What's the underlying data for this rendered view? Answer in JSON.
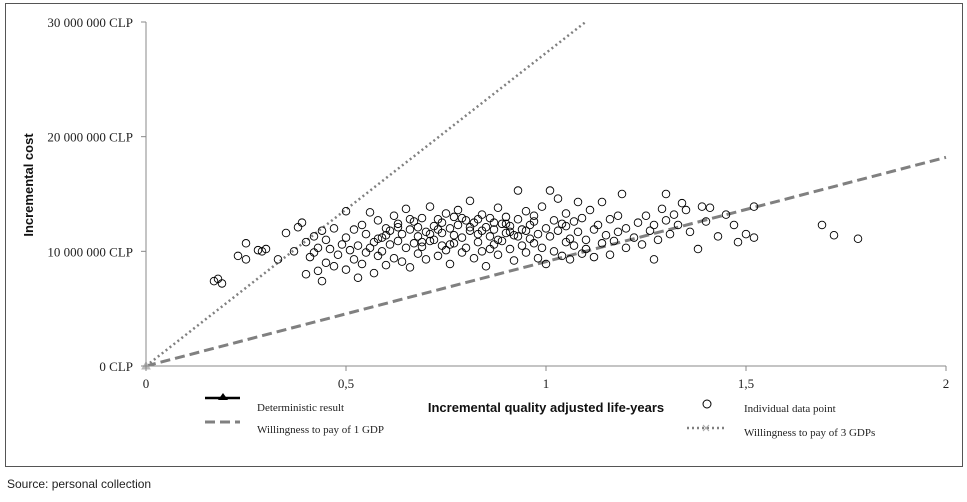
{
  "chart_data": {
    "type": "scatter",
    "title": "",
    "xlabel": "Incremental quality adjusted life-years",
    "ylabel": "Incremental cost",
    "xlim": [
      0,
      2
    ],
    "ylim": [
      0,
      30000000
    ],
    "x_ticks": [
      "0",
      "0,5",
      "1",
      "1,5",
      "2"
    ],
    "y_ticks": [
      "0 CLP",
      "10 000 000 CLP",
      "20 000 000 CLP",
      "30 000 000 CLP"
    ],
    "grid": false,
    "legend_position": "bottom",
    "series": [
      {
        "name": "Deterministic result",
        "style": "solid",
        "color": "#000000",
        "marker": "triangle",
        "points": [
          [
            0,
            0
          ]
        ]
      },
      {
        "name": "Willingness to pay of 1 GDP",
        "style": "dashed",
        "color": "#808080",
        "slope": 9100000
      },
      {
        "name": "Individual data point",
        "style": "points",
        "color": "#000000",
        "marker": "open-circle",
        "points": [
          [
            0.17,
            7400000
          ],
          [
            0.18,
            7600000
          ],
          [
            0.19,
            7200000
          ],
          [
            0.23,
            9600000
          ],
          [
            0.25,
            9300000
          ],
          [
            0.25,
            10700000
          ],
          [
            0.28,
            10100000
          ],
          [
            0.29,
            10000000
          ],
          [
            0.3,
            10200000
          ],
          [
            0.33,
            9300000
          ],
          [
            0.35,
            11600000
          ],
          [
            0.37,
            10000000
          ],
          [
            0.38,
            12100000
          ],
          [
            0.39,
            12500000
          ],
          [
            0.4,
            8000000
          ],
          [
            0.4,
            10800000
          ],
          [
            0.41,
            9500000
          ],
          [
            0.42,
            11300000
          ],
          [
            0.42,
            9900000
          ],
          [
            0.43,
            8300000
          ],
          [
            0.43,
            10300000
          ],
          [
            0.44,
            7400000
          ],
          [
            0.44,
            11800000
          ],
          [
            0.45,
            9000000
          ],
          [
            0.45,
            11000000
          ],
          [
            0.46,
            10200000
          ],
          [
            0.47,
            12000000
          ],
          [
            0.47,
            8700000
          ],
          [
            0.48,
            9700000
          ],
          [
            0.49,
            10600000
          ],
          [
            0.5,
            11200000
          ],
          [
            0.5,
            8400000
          ],
          [
            0.5,
            13500000
          ],
          [
            0.51,
            10100000
          ],
          [
            0.52,
            9300000
          ],
          [
            0.52,
            11900000
          ],
          [
            0.53,
            7700000
          ],
          [
            0.53,
            10500000
          ],
          [
            0.54,
            12300000
          ],
          [
            0.54,
            8900000
          ],
          [
            0.55,
            9900000
          ],
          [
            0.55,
            11500000
          ],
          [
            0.56,
            10300000
          ],
          [
            0.56,
            13400000
          ],
          [
            0.57,
            8100000
          ],
          [
            0.57,
            10800000
          ],
          [
            0.58,
            12700000
          ],
          [
            0.58,
            9600000
          ],
          [
            0.59,
            11200000
          ],
          [
            0.59,
            10000000
          ],
          [
            0.6,
            12000000
          ],
          [
            0.6,
            8800000
          ],
          [
            0.61,
            10600000
          ],
          [
            0.61,
            11800000
          ],
          [
            0.62,
            9400000
          ],
          [
            0.62,
            13100000
          ],
          [
            0.63,
            10900000
          ],
          [
            0.63,
            12400000
          ],
          [
            0.64,
            9100000
          ],
          [
            0.64,
            11500000
          ],
          [
            0.65,
            10300000
          ],
          [
            0.65,
            13700000
          ],
          [
            0.66,
            11900000
          ],
          [
            0.66,
            8600000
          ],
          [
            0.67,
            10700000
          ],
          [
            0.67,
            12600000
          ],
          [
            0.68,
            9800000
          ],
          [
            0.68,
            11300000
          ],
          [
            0.69,
            12900000
          ],
          [
            0.69,
            10400000
          ],
          [
            0.7,
            11700000
          ],
          [
            0.7,
            9300000
          ],
          [
            0.71,
            13900000
          ],
          [
            0.71,
            10900000
          ],
          [
            0.72,
            12200000
          ],
          [
            0.72,
            11000000
          ],
          [
            0.73,
            9600000
          ],
          [
            0.73,
            12800000
          ],
          [
            0.74,
            10500000
          ],
          [
            0.74,
            11600000
          ],
          [
            0.75,
            13300000
          ],
          [
            0.75,
            10100000
          ],
          [
            0.76,
            12000000
          ],
          [
            0.76,
            8900000
          ],
          [
            0.77,
            11400000
          ],
          [
            0.77,
            10700000
          ],
          [
            0.78,
            13600000
          ],
          [
            0.78,
            12300000
          ],
          [
            0.79,
            9900000
          ],
          [
            0.79,
            11200000
          ],
          [
            0.8,
            12700000
          ],
          [
            0.8,
            10300000
          ],
          [
            0.81,
            14400000
          ],
          [
            0.81,
            11800000
          ],
          [
            0.82,
            9400000
          ],
          [
            0.82,
            12500000
          ],
          [
            0.83,
            10800000
          ],
          [
            0.83,
            11500000
          ],
          [
            0.84,
            13200000
          ],
          [
            0.84,
            10000000
          ],
          [
            0.85,
            12100000
          ],
          [
            0.85,
            8700000
          ],
          [
            0.86,
            11300000
          ],
          [
            0.86,
            12900000
          ],
          [
            0.87,
            10600000
          ],
          [
            0.87,
            11900000
          ],
          [
            0.88,
            13800000
          ],
          [
            0.88,
            9700000
          ],
          [
            0.89,
            12400000
          ],
          [
            0.89,
            10900000
          ],
          [
            0.9,
            11600000
          ],
          [
            0.9,
            13000000
          ],
          [
            0.91,
            10200000
          ],
          [
            0.91,
            12200000
          ],
          [
            0.92,
            9200000
          ],
          [
            0.92,
            11400000
          ],
          [
            0.93,
            15300000
          ],
          [
            0.93,
            12800000
          ],
          [
            0.94,
            10500000
          ],
          [
            0.94,
            11900000
          ],
          [
            0.95,
            13500000
          ],
          [
            0.95,
            9900000
          ],
          [
            0.96,
            12300000
          ],
          [
            0.96,
            11100000
          ],
          [
            0.97,
            10700000
          ],
          [
            0.97,
            12600000
          ],
          [
            0.98,
            9400000
          ],
          [
            0.98,
            11500000
          ],
          [
            0.99,
            13900000
          ],
          [
            0.99,
            10300000
          ],
          [
            1.0,
            12000000
          ],
          [
            1.0,
            8900000
          ],
          [
            1.01,
            15300000
          ],
          [
            1.01,
            11300000
          ],
          [
            1.02,
            12700000
          ],
          [
            1.02,
            10000000
          ],
          [
            1.03,
            14600000
          ],
          [
            1.03,
            11800000
          ],
          [
            1.04,
            9600000
          ],
          [
            1.04,
            12400000
          ],
          [
            1.05,
            10800000
          ],
          [
            1.05,
            13300000
          ],
          [
            1.06,
            11100000
          ],
          [
            1.06,
            9300000
          ],
          [
            1.07,
            12600000
          ],
          [
            1.07,
            10500000
          ],
          [
            1.08,
            14300000
          ],
          [
            1.08,
            11700000
          ],
          [
            1.09,
            9800000
          ],
          [
            1.09,
            12900000
          ],
          [
            1.1,
            11000000
          ],
          [
            1.1,
            10200000
          ],
          [
            1.11,
            13600000
          ],
          [
            1.12,
            11900000
          ],
          [
            1.12,
            9500000
          ],
          [
            1.13,
            12300000
          ],
          [
            1.14,
            10700000
          ],
          [
            1.14,
            14300000
          ],
          [
            1.15,
            11400000
          ],
          [
            1.16,
            9700000
          ],
          [
            1.16,
            12800000
          ],
          [
            1.17,
            10900000
          ],
          [
            1.18,
            11700000
          ],
          [
            1.18,
            13100000
          ],
          [
            1.19,
            15000000
          ],
          [
            1.2,
            10300000
          ],
          [
            1.2,
            12000000
          ],
          [
            1.22,
            11200000
          ],
          [
            1.23,
            12500000
          ],
          [
            1.24,
            10600000
          ],
          [
            1.25,
            13100000
          ],
          [
            1.26,
            11800000
          ],
          [
            1.27,
            9300000
          ],
          [
            1.27,
            12300000
          ],
          [
            1.28,
            11000000
          ],
          [
            1.29,
            13700000
          ],
          [
            1.3,
            15000000
          ],
          [
            1.3,
            12700000
          ],
          [
            1.31,
            11500000
          ],
          [
            1.32,
            13200000
          ],
          [
            1.33,
            12300000
          ],
          [
            1.34,
            14200000
          ],
          [
            1.35,
            13600000
          ],
          [
            1.36,
            11700000
          ],
          [
            1.38,
            10200000
          ],
          [
            1.39,
            13900000
          ],
          [
            1.4,
            12600000
          ],
          [
            1.41,
            13800000
          ],
          [
            1.43,
            11300000
          ],
          [
            1.45,
            13200000
          ],
          [
            1.47,
            12300000
          ],
          [
            1.48,
            10800000
          ],
          [
            1.5,
            11500000
          ],
          [
            1.52,
            13900000
          ],
          [
            1.52,
            11200000
          ],
          [
            1.69,
            12300000
          ],
          [
            1.72,
            11400000
          ],
          [
            1.78,
            11100000
          ],
          [
            0.66,
            12800000
          ],
          [
            0.71,
            11500000
          ],
          [
            0.76,
            10600000
          ],
          [
            0.79,
            12900000
          ],
          [
            0.84,
            11800000
          ],
          [
            0.86,
            10200000
          ],
          [
            0.9,
            12400000
          ],
          [
            0.93,
            11300000
          ],
          [
            0.97,
            13100000
          ],
          [
            0.73,
            11900000
          ],
          [
            0.69,
            10800000
          ],
          [
            0.81,
            12100000
          ],
          [
            0.88,
            11000000
          ],
          [
            0.63,
            12100000
          ],
          [
            0.58,
            11100000
          ],
          [
            0.95,
            11800000
          ],
          [
            1.05,
            12200000
          ],
          [
            0.77,
            13000000
          ],
          [
            0.74,
            12500000
          ],
          [
            0.83,
            12800000
          ],
          [
            0.91,
            11700000
          ],
          [
            0.68,
            12100000
          ],
          [
            0.6,
            11400000
          ],
          [
            0.87,
            12500000
          ]
        ]
      },
      {
        "name": "Willingness to pay of 3 GDPs",
        "style": "dotted",
        "color": "#808080",
        "slope": 27300000
      }
    ]
  },
  "source_text": "Source: personal collection"
}
